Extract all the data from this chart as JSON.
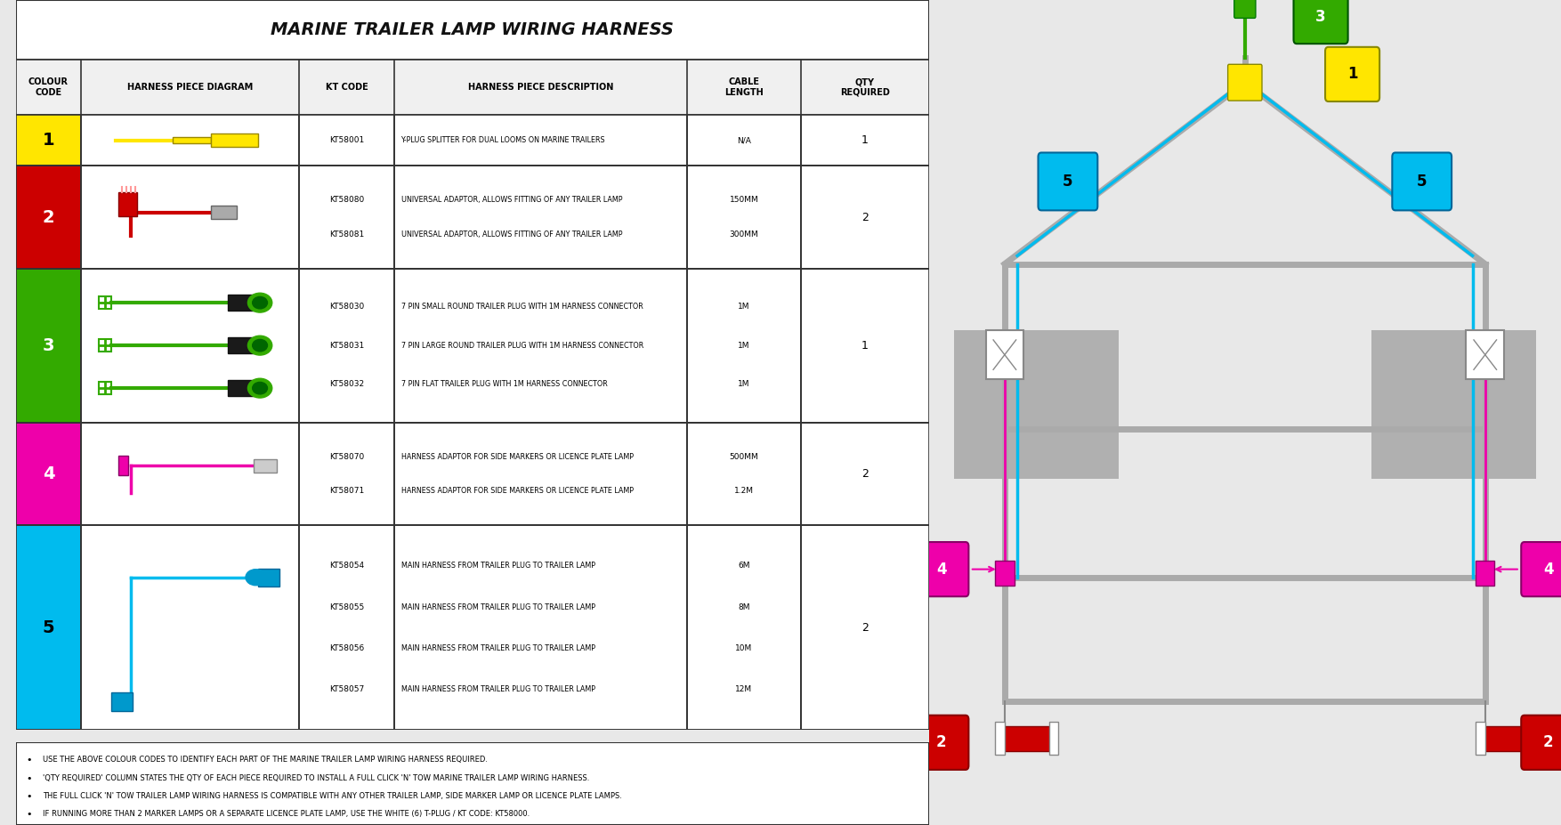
{
  "title": "MARINE TRAILER LAMP WIRING HARNESS",
  "col_headers": [
    "COLOUR\nCODE",
    "HARNESS PIECE DIAGRAM",
    "KT CODE",
    "HARNESS PIECE DESCRIPTION",
    "CABLE\nLENGTH",
    "QTY\nREQUIRED"
  ],
  "rows": [
    {
      "num": "1",
      "color": "#FFE600",
      "text_color": "#000000",
      "kt_codes": [
        "KT58001"
      ],
      "descriptions": [
        "Y-PLUG SPLITTER FOR DUAL LOOMS ON MARINE TRAILERS"
      ],
      "lengths": [
        "N/A"
      ],
      "qty": "1"
    },
    {
      "num": "2",
      "color": "#CC0000",
      "text_color": "#ffffff",
      "kt_codes": [
        "KT58080",
        "KT58081"
      ],
      "descriptions": [
        "UNIVERSAL ADAPTOR, ALLOWS FITTING OF ANY TRAILER LAMP",
        "UNIVERSAL ADAPTOR, ALLOWS FITTING OF ANY TRAILER LAMP"
      ],
      "lengths": [
        "150MM",
        "300MM"
      ],
      "qty": "2"
    },
    {
      "num": "3",
      "color": "#33AA00",
      "text_color": "#ffffff",
      "kt_codes": [
        "KT58030",
        "KT58031",
        "KT58032"
      ],
      "descriptions": [
        "7 PIN SMALL ROUND TRAILER PLUG WITH 1M HARNESS CONNECTOR",
        "7 PIN LARGE ROUND TRAILER PLUG WITH 1M HARNESS CONNECTOR",
        "7 PIN FLAT TRAILER PLUG WITH 1M HARNESS CONNECTOR"
      ],
      "lengths": [
        "1M",
        "1M",
        "1M"
      ],
      "qty": "1"
    },
    {
      "num": "4",
      "color": "#EE00AA",
      "text_color": "#ffffff",
      "kt_codes": [
        "KT58070",
        "KT58071"
      ],
      "descriptions": [
        "HARNESS ADAPTOR FOR SIDE MARKERS OR LICENCE PLATE LAMP",
        "HARNESS ADAPTOR FOR SIDE MARKERS OR LICENCE PLATE LAMP"
      ],
      "lengths": [
        "500MM",
        "1.2M"
      ],
      "qty": "2"
    },
    {
      "num": "5",
      "color": "#00BBEE",
      "text_color": "#000000",
      "kt_codes": [
        "KT58054",
        "KT58055",
        "KT58056",
        "KT58057"
      ],
      "descriptions": [
        "MAIN HARNESS FROM TRAILER PLUG TO TRAILER LAMP",
        "MAIN HARNESS FROM TRAILER PLUG TO TRAILER LAMP",
        "MAIN HARNESS FROM TRAILER PLUG TO TRAILER LAMP",
        "MAIN HARNESS FROM TRAILER PLUG TO TRAILER LAMP"
      ],
      "lengths": [
        "6M",
        "8M",
        "10M",
        "12M"
      ],
      "qty": "2"
    }
  ],
  "bullets": [
    "USE THE ABOVE COLOUR CODES TO IDENTIFY EACH PART OF THE MARINE TRAILER LAMP WIRING HARNESS REQUIRED.",
    "'QTY REQUIRED' COLUMN STATES THE QTY OF EACH PIECE REQUIRED TO INSTALL A FULL CLICK 'N' TOW MARINE TRAILER LAMP WIRING HARNESS.",
    "THE FULL CLICK 'N' TOW TRAILER LAMP WIRING HARNESS IS COMPATIBLE WITH ANY OTHER TRAILER LAMP, SIDE MARKER LAMP OR LICENCE PLATE LAMPS.",
    "IF RUNNING MORE THAN 2 MARKER LAMPS OR A SEPARATE LICENCE PLATE LAMP, USE THE WHITE (6) T-PLUG / KT CODE: KT58000."
  ],
  "outer_bg": "#e8e8e8",
  "table_bg": "#ffffff",
  "header_bg": "#f0f0f0",
  "border_color": "#555555",
  "right_bg": "#cccccc",
  "frame_color": "#aaaaaa",
  "cyan_wire": "#00BBEE",
  "green_plug": "#33AA00",
  "pink_wire": "#EE00AA",
  "red_conn": "#CC0000",
  "yellow_conn": "#FFE600"
}
